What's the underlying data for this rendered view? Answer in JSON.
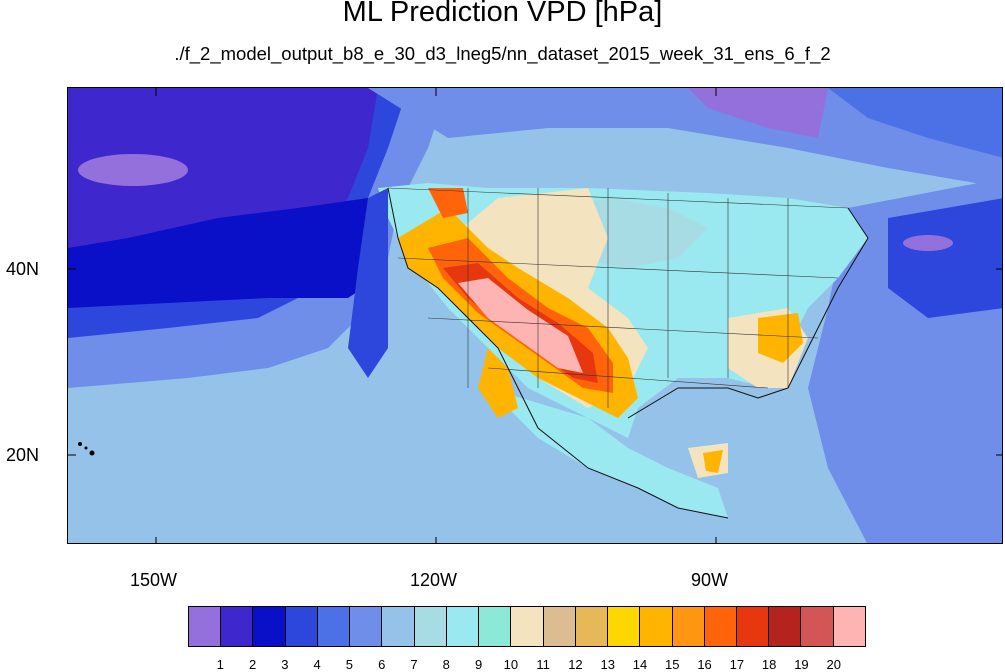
{
  "title": "ML Prediction VPD [hPa]",
  "subtitle": "./f_2_model_output_b8_e_30_d3_lneg5/nn_dataset_2015_week_31_ens_6_f_2",
  "latitude_labels": [
    "40N",
    "20N"
  ],
  "longitude_labels": [
    "150W",
    "120W",
    "90W"
  ],
  "colorbar": {
    "colors": [
      "#9370db",
      "#3e28cd",
      "#0a10c8",
      "#2d46dc",
      "#4c70e6",
      "#6e8ee9",
      "#94c2e9",
      "#a8dce4",
      "#9ae8f0",
      "#8de9d7",
      "#f3e4bf",
      "#dcbd91",
      "#e6b858",
      "#ffd700",
      "#ffb400",
      "#ff9612",
      "#ff640a",
      "#e6370f",
      "#b4231e",
      "#d35555",
      "#ffb4b4"
    ],
    "labels": [
      "1",
      "2",
      "3",
      "4",
      "5",
      "6",
      "7",
      "8",
      "9",
      "10",
      "11",
      "12",
      "13",
      "14",
      "15",
      "16",
      "17",
      "18",
      "19",
      "20"
    ]
  },
  "map_fields": {
    "background": "#94c2e9",
    "pacific_deep": "#3e28cd",
    "pacific_mid": "#0a10c8",
    "pacific_blue": "#2d46dc",
    "ocean_light": "#6e8ee9",
    "land_cool": "#9ae8f0",
    "desert_hot": "#ffb4b4"
  }
}
